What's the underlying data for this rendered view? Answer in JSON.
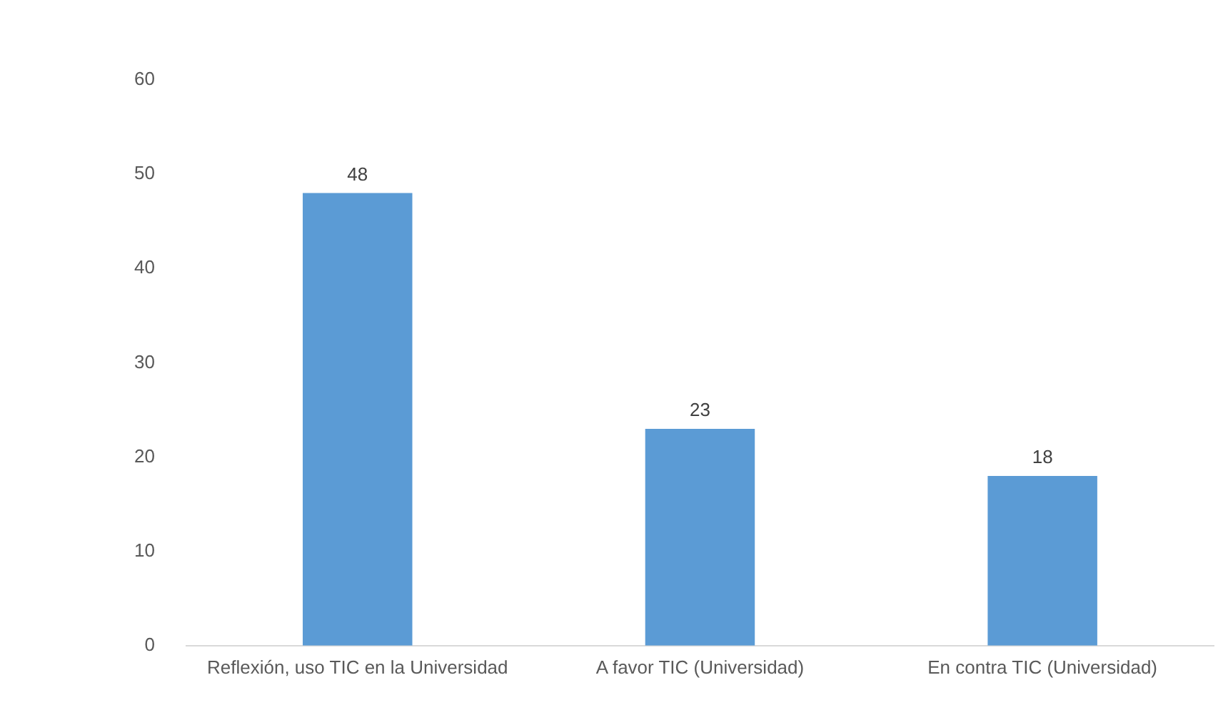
{
  "chart_data": {
    "type": "bar",
    "categories": [
      "Reflexión, uso TIC en la Universidad",
      "A favor TIC (Universidad)",
      "En contra TIC (Universidad)"
    ],
    "values": [
      48,
      23,
      18
    ],
    "color": "#5b9bd5",
    "ylim": [
      0,
      60
    ],
    "yticks": [
      0,
      10,
      20,
      30,
      40,
      50,
      60
    ],
    "grid": false,
    "legend": false,
    "data_labels": true
  }
}
